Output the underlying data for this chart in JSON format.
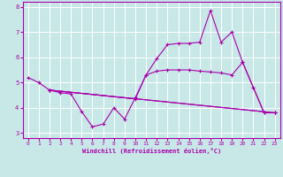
{
  "bg_color": "#c8e8e8",
  "grid_color": "#ffffff",
  "line_color": "#aa00aa",
  "xlabel": "Windchill (Refroidissement éolien,°C)",
  "xlim": [
    -0.5,
    23.5
  ],
  "ylim": [
    2.8,
    8.2
  ],
  "yticks": [
    3,
    4,
    5,
    6,
    7,
    8
  ],
  "xticks": [
    0,
    1,
    2,
    3,
    4,
    5,
    6,
    7,
    8,
    9,
    10,
    11,
    12,
    13,
    14,
    15,
    16,
    17,
    18,
    19,
    20,
    21,
    22,
    23
  ],
  "lines": [
    {
      "x": [
        0,
        1,
        2,
        23
      ],
      "y": [
        5.2,
        5.0,
        4.7,
        3.8
      ]
    },
    {
      "x": [
        2,
        3,
        4,
        5,
        6,
        7,
        8,
        9,
        10,
        11,
        12,
        13,
        14,
        15,
        16,
        17,
        18,
        19,
        20,
        21,
        22,
        23
      ],
      "y": [
        4.7,
        4.6,
        4.55,
        3.85,
        3.25,
        3.35,
        4.0,
        3.55,
        4.4,
        5.3,
        5.95,
        6.5,
        6.55,
        6.55,
        6.6,
        7.85,
        6.6,
        7.0,
        5.8,
        4.8,
        3.8,
        3.8
      ]
    },
    {
      "x": [
        2,
        23
      ],
      "y": [
        4.7,
        3.8
      ]
    },
    {
      "x": [
        2,
        10,
        11,
        12,
        13,
        14,
        15,
        16,
        17,
        18,
        19,
        20,
        21,
        22,
        23
      ],
      "y": [
        4.7,
        4.35,
        5.3,
        5.45,
        5.5,
        5.5,
        5.5,
        5.45,
        5.42,
        5.38,
        5.3,
        5.8,
        4.8,
        3.8,
        3.8
      ]
    }
  ]
}
